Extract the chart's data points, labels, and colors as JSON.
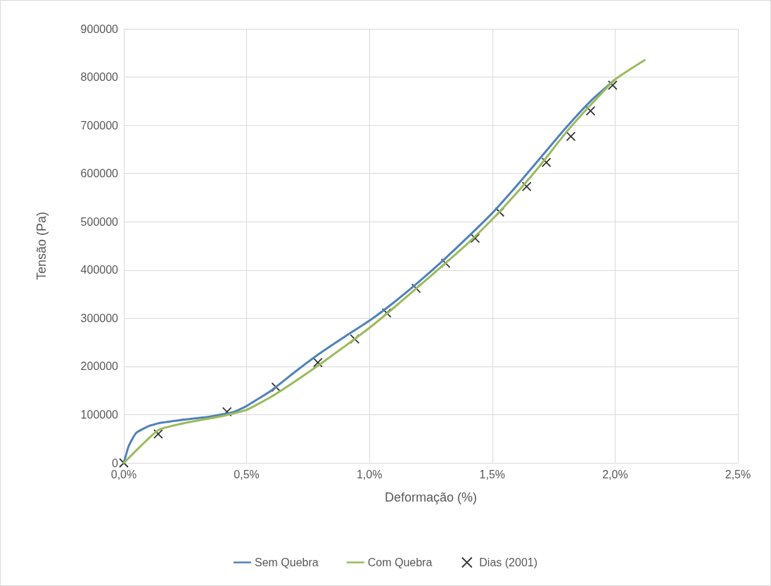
{
  "chart_data": {
    "type": "line",
    "xlabel": "Deformação (%)",
    "ylabel": "Tensão (Pa)",
    "xlim": [
      0,
      2.5
    ],
    "xticks": [
      {
        "value": 0,
        "label": "0,0%"
      },
      {
        "value": 0.5,
        "label": "0,5%"
      },
      {
        "value": 1,
        "label": "1,0%"
      },
      {
        "value": 1.5,
        "label": "1,5%"
      },
      {
        "value": 2,
        "label": "2,0%"
      },
      {
        "value": 2.5,
        "label": "2,5%"
      }
    ],
    "ylim": [
      0,
      900000
    ],
    "yticks": [
      0,
      100000,
      200000,
      300000,
      400000,
      500000,
      600000,
      700000,
      800000,
      900000
    ],
    "grid": true,
    "legend": "bottom",
    "series": [
      {
        "name": "Sem Quebra",
        "marker": "none",
        "color": "#4f81bd",
        "x": [
          0,
          0.02,
          0.05,
          0.1,
          0.15,
          0.25,
          0.35,
          0.45,
          0.5,
          0.6,
          0.7,
          0.8,
          0.9,
          1.0,
          1.1,
          1.2,
          1.3,
          1.4,
          1.5,
          1.6,
          1.7,
          1.8,
          1.9,
          2.0
        ],
        "values": [
          0,
          35000,
          62000,
          76000,
          83000,
          90000,
          96000,
          106000,
          118000,
          150000,
          190000,
          228000,
          262000,
          295000,
          333000,
          375000,
          420000,
          468000,
          518000,
          575000,
          635000,
          695000,
          750000,
          795000
        ]
      },
      {
        "name": "Com Quebra",
        "marker": "none",
        "color": "#9bbb59",
        "x": [
          0,
          0.14,
          0.25,
          0.4,
          0.5,
          0.6,
          0.7,
          0.8,
          0.9,
          1.0,
          1.1,
          1.2,
          1.3,
          1.4,
          1.5,
          1.6,
          1.7,
          1.8,
          1.9,
          2.0,
          2.12
        ],
        "values": [
          0,
          68000,
          83000,
          97000,
          110000,
          137000,
          170000,
          205000,
          242000,
          280000,
          322000,
          366000,
          410000,
          455000,
          505000,
          560000,
          620000,
          685000,
          742000,
          795000,
          835000
        ]
      },
      {
        "name": "Dias (2001)",
        "type": "scatter",
        "marker": "cross",
        "color": "#000000",
        "x": [
          0,
          0.14,
          0.42,
          0.62,
          0.79,
          0.94,
          1.07,
          1.19,
          1.31,
          1.43,
          1.53,
          1.64,
          1.72,
          1.82,
          1.9,
          1.99
        ],
        "values": [
          0,
          60000,
          106000,
          157000,
          208000,
          257000,
          311000,
          362000,
          414000,
          466000,
          520000,
          573000,
          623000,
          677000,
          730000,
          783000
        ]
      }
    ]
  }
}
